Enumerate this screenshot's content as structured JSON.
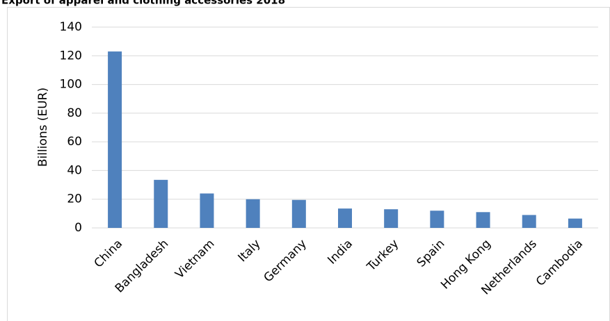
{
  "chart_data": {
    "type": "bar",
    "title": "Export of apparel and clothing accessories 2018",
    "y_label": "Billions (EUR)",
    "categories": [
      "China",
      "Bangladesh",
      "Vietnam",
      "Italy",
      "Germany",
      "India",
      "Turkey",
      "Spain",
      "Hong Kong",
      "Netherlands",
      "Cambodia"
    ],
    "values": [
      123,
      33.5,
      24,
      20,
      19.5,
      13.5,
      13,
      12,
      11,
      9,
      6.5
    ],
    "color": "#4f81bd",
    "ylim": [
      0,
      140
    ],
    "yticks": [
      0,
      20,
      40,
      60,
      80,
      100,
      120,
      140
    ],
    "grid": true
  }
}
